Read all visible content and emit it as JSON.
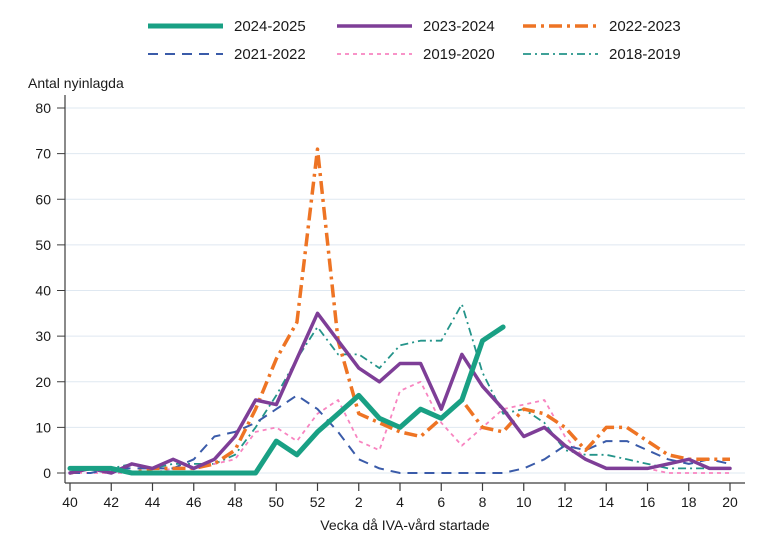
{
  "chart": {
    "y_axis_title": "Antal nyinlagda",
    "x_axis_title": "Vecka då IVA-vård startade",
    "colors": {
      "grid": "#dfe8f1",
      "axis": "#3c3c3c",
      "text": "#1a1a1a"
    }
  },
  "chart_data": {
    "type": "line",
    "title": "",
    "xlabel": "Vecka då IVA-vård startade",
    "ylabel": "Antal nyinlagda",
    "ylim": [
      0,
      80
    ],
    "y_ticks": [
      0,
      10,
      20,
      30,
      40,
      50,
      60,
      70,
      80
    ],
    "grid": true,
    "legend_position": "top",
    "x_categories": [
      "40",
      "41",
      "42",
      "43",
      "44",
      "45",
      "46",
      "47",
      "48",
      "49",
      "50",
      "51",
      "52",
      "1",
      "2",
      "3",
      "4",
      "5",
      "6",
      "7",
      "8",
      "9",
      "10",
      "11",
      "12",
      "13",
      "14",
      "15",
      "16",
      "17",
      "18",
      "19",
      "20"
    ],
    "x_tick_labels": [
      "40",
      "42",
      "44",
      "46",
      "48",
      "50",
      "52",
      "2",
      "4",
      "6",
      "8",
      "10",
      "12",
      "14",
      "16",
      "18",
      "20"
    ],
    "series": [
      {
        "name": "2024-2025",
        "color": "#19a084",
        "line_style": "solid",
        "width": 5,
        "values": [
          1,
          1,
          1,
          0,
          0,
          0,
          0,
          0,
          0,
          0,
          7,
          4,
          9,
          13,
          17,
          12,
          10,
          14,
          12,
          16,
          29,
          32,
          null,
          null,
          null,
          null,
          null,
          null,
          null,
          null,
          null,
          null,
          null
        ]
      },
      {
        "name": "2023-2024",
        "color": "#7e3e97",
        "line_style": "solid",
        "width": 3.5,
        "values": [
          0,
          1,
          0,
          2,
          1,
          3,
          1,
          3,
          8,
          16,
          15,
          25,
          35,
          29,
          23,
          20,
          24,
          24,
          14,
          26,
          19,
          14,
          8,
          10,
          6,
          3,
          1,
          1,
          1,
          2,
          3,
          1,
          1
        ]
      },
      {
        "name": "2022-2023",
        "color": "#ee7424",
        "line_style": "long-dash-dot",
        "width": 3.5,
        "values": [
          0,
          1,
          1,
          0,
          1,
          1,
          1,
          2,
          5,
          14,
          25,
          33,
          71,
          29,
          13,
          11,
          9,
          8,
          12,
          16,
          10,
          9,
          14,
          13,
          10,
          5,
          10,
          10,
          7,
          4,
          3,
          3,
          3
        ]
      },
      {
        "name": "2021-2022",
        "color": "#3a5ba9",
        "line_style": "dash",
        "width": 2,
        "values": [
          0,
          0,
          1,
          1,
          1,
          1,
          3,
          8,
          9,
          11,
          14,
          17,
          14,
          9,
          3,
          1,
          0,
          0,
          0,
          0,
          0,
          0,
          1,
          3,
          6,
          5,
          7,
          7,
          5,
          3,
          2,
          3,
          2
        ]
      },
      {
        "name": "2019-2020",
        "color": "#f884c0",
        "line_style": "short-dash",
        "width": 1.8,
        "values": [
          0,
          0,
          0,
          0,
          0,
          1,
          1,
          2,
          3,
          9,
          10,
          7,
          13,
          16,
          7,
          5,
          18,
          20,
          11,
          6,
          10,
          14,
          15,
          16,
          8,
          3,
          1,
          1,
          1,
          0,
          0,
          0,
          0
        ]
      },
      {
        "name": "2018-2019",
        "color": "#24948a",
        "line_style": "dash-dot",
        "width": 1.8,
        "values": [
          0,
          1,
          1,
          2,
          1,
          2,
          2,
          2,
          4,
          10,
          17,
          25,
          32,
          26,
          26,
          23,
          28,
          29,
          29,
          37,
          22,
          13,
          14,
          11,
          5,
          4,
          4,
          3,
          2,
          1,
          1,
          1,
          1
        ]
      }
    ]
  }
}
